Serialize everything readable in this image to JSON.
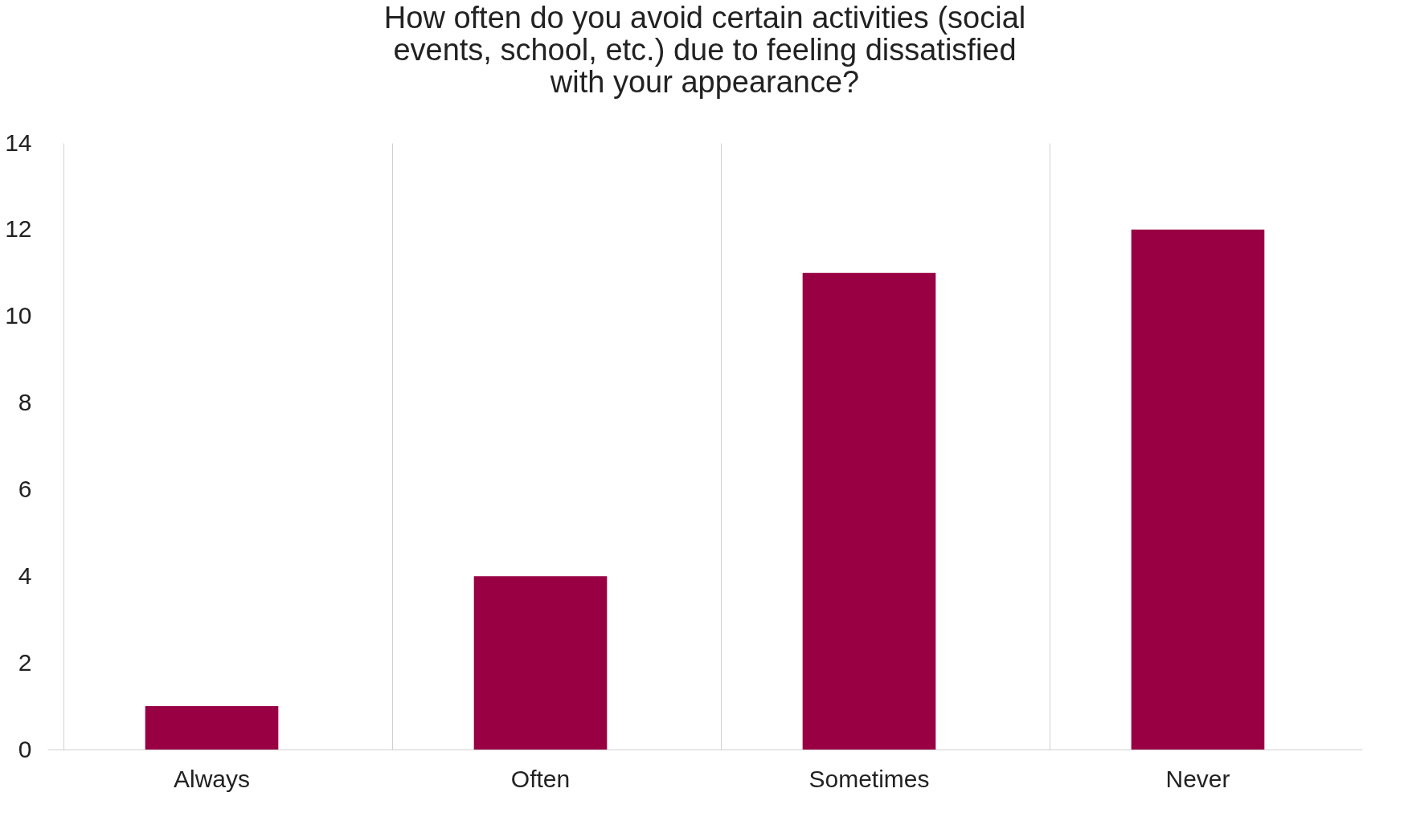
{
  "chart_data": {
    "type": "bar",
    "title": [
      "How often do you avoid certain activities (social",
      "events, school, etc.) due to feeling dissatisfied",
      "with your appearance?"
    ],
    "categories": [
      "Always",
      "Often",
      "Sometimes",
      "Never"
    ],
    "values": [
      1,
      4,
      11,
      12
    ],
    "color": "#990044",
    "ylim": [
      0,
      14
    ],
    "yticks": [
      0,
      2,
      4,
      6,
      8,
      10,
      12,
      14
    ],
    "grid": "x"
  }
}
